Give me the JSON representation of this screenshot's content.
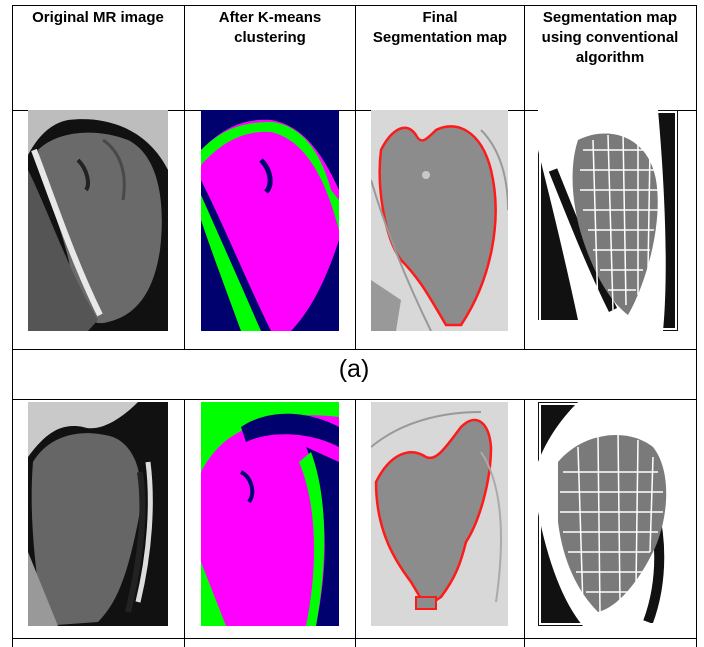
{
  "table": {
    "headers": [
      "Original MR image",
      "After K-means clustering",
      "Final Segmentation map",
      "Segmentation map using conventional algorithm"
    ],
    "caption_a": "(a)"
  },
  "colors": {
    "kmeans_magenta": "#ff00ff",
    "kmeans_green": "#00ff00",
    "kmeans_navy": "#00006e",
    "segmentation_boundary": "#ff1a1a",
    "segmentation_fill": "#8c8c8c",
    "segmentation_background": "#d8d8d8"
  },
  "panel_icons": [
    "mri-scan-image",
    "kmeans-cluster-image",
    "segmentation-map-image",
    "conventional-segmentation-image"
  ]
}
